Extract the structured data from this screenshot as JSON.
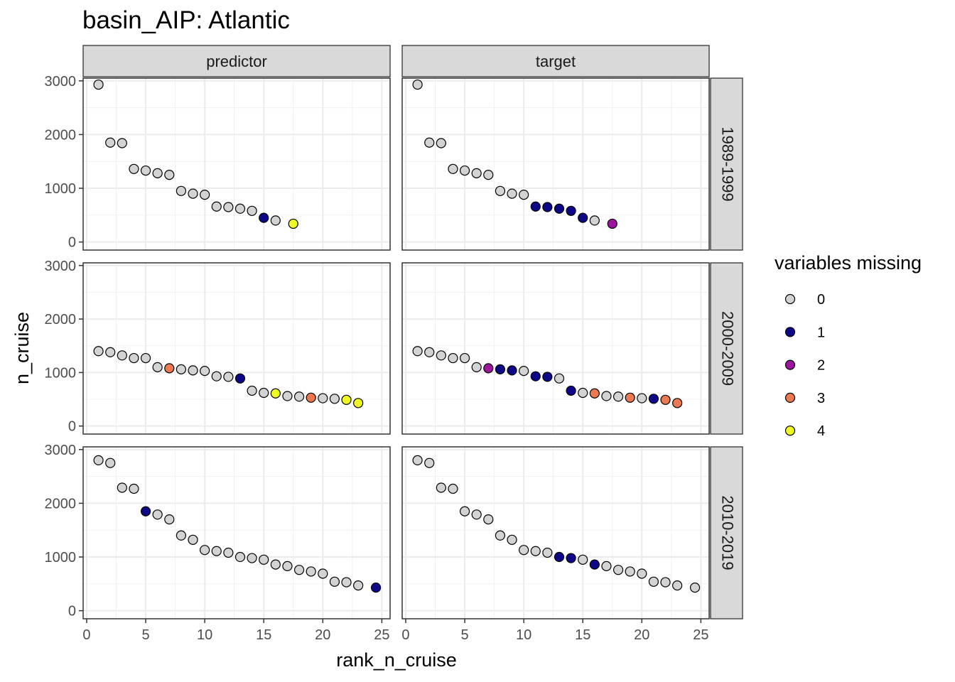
{
  "chart_data": {
    "type": "scatter",
    "title": "basin_AIP: Atlantic",
    "xlabel": "rank_n_cruise",
    "ylabel": "n_cruise",
    "xlim": [
      -0.3,
      25.7
    ],
    "ylim": [
      -150,
      3050
    ],
    "xticks": [
      0,
      5,
      10,
      15,
      20,
      25
    ],
    "yticks": [
      0,
      1000,
      2000,
      3000
    ],
    "grid": true,
    "column_facets": [
      "predictor",
      "target"
    ],
    "row_facets": [
      "1989-1999",
      "2000-2009",
      "2010-2019"
    ],
    "legend": {
      "title": "variables missing",
      "position": "right",
      "entries": [
        {
          "label": "0",
          "color": "#d3d3d3"
        },
        {
          "label": "1",
          "color": "#0d0887"
        },
        {
          "label": "2",
          "color": "#9c179e"
        },
        {
          "label": "3",
          "color": "#ed7953"
        },
        {
          "label": "4",
          "color": "#f0f921"
        }
      ]
    },
    "panels": [
      {
        "row": "1989-1999",
        "col": "predictor",
        "points": [
          [
            1,
            2930,
            0
          ],
          [
            2,
            1850,
            0
          ],
          [
            3,
            1840,
            0
          ],
          [
            4,
            1360,
            0
          ],
          [
            5,
            1330,
            0
          ],
          [
            6,
            1280,
            0
          ],
          [
            7,
            1250,
            0
          ],
          [
            8,
            950,
            0
          ],
          [
            9,
            900,
            0
          ],
          [
            10,
            880,
            0
          ],
          [
            11,
            660,
            0
          ],
          [
            12,
            650,
            0
          ],
          [
            13,
            620,
            0
          ],
          [
            14,
            580,
            0
          ],
          [
            15,
            450,
            1
          ],
          [
            16,
            400,
            0
          ],
          [
            17.5,
            340,
            4
          ]
        ]
      },
      {
        "row": "1989-1999",
        "col": "target",
        "points": [
          [
            1,
            2930,
            0
          ],
          [
            2,
            1850,
            0
          ],
          [
            3,
            1840,
            0
          ],
          [
            4,
            1360,
            0
          ],
          [
            5,
            1330,
            0
          ],
          [
            6,
            1280,
            0
          ],
          [
            7,
            1250,
            0
          ],
          [
            8,
            950,
            0
          ],
          [
            9,
            900,
            0
          ],
          [
            10,
            880,
            0
          ],
          [
            11,
            660,
            1
          ],
          [
            12,
            650,
            1
          ],
          [
            13,
            620,
            1
          ],
          [
            14,
            580,
            1
          ],
          [
            15,
            450,
            1
          ],
          [
            16,
            400,
            0
          ],
          [
            17.5,
            340,
            2
          ]
        ]
      },
      {
        "row": "2000-2009",
        "col": "predictor",
        "points": [
          [
            1,
            1400,
            0
          ],
          [
            2,
            1380,
            0
          ],
          [
            3,
            1320,
            0
          ],
          [
            4,
            1270,
            0
          ],
          [
            5,
            1270,
            0
          ],
          [
            6,
            1100,
            0
          ],
          [
            7,
            1080,
            3
          ],
          [
            8,
            1060,
            0
          ],
          [
            9,
            1040,
            0
          ],
          [
            10,
            1030,
            0
          ],
          [
            11,
            930,
            0
          ],
          [
            12,
            920,
            0
          ],
          [
            13,
            890,
            1
          ],
          [
            14,
            660,
            0
          ],
          [
            15,
            620,
            0
          ],
          [
            16,
            610,
            4
          ],
          [
            17,
            560,
            0
          ],
          [
            18,
            550,
            0
          ],
          [
            19,
            530,
            3
          ],
          [
            20,
            520,
            0
          ],
          [
            21,
            510,
            0
          ],
          [
            22,
            490,
            4
          ],
          [
            23,
            430,
            4
          ]
        ]
      },
      {
        "row": "2000-2009",
        "col": "target",
        "points": [
          [
            1,
            1400,
            0
          ],
          [
            2,
            1380,
            0
          ],
          [
            3,
            1320,
            0
          ],
          [
            4,
            1270,
            0
          ],
          [
            5,
            1270,
            0
          ],
          [
            6,
            1100,
            0
          ],
          [
            7,
            1080,
            2
          ],
          [
            8,
            1060,
            1
          ],
          [
            9,
            1040,
            1
          ],
          [
            10,
            1030,
            0
          ],
          [
            11,
            930,
            1
          ],
          [
            12,
            920,
            1
          ],
          [
            13,
            890,
            0
          ],
          [
            14,
            660,
            1
          ],
          [
            15,
            620,
            0
          ],
          [
            16,
            610,
            3
          ],
          [
            17,
            560,
            0
          ],
          [
            18,
            550,
            0
          ],
          [
            19,
            530,
            3
          ],
          [
            20,
            520,
            0
          ],
          [
            21,
            510,
            1
          ],
          [
            22,
            490,
            3
          ],
          [
            23,
            430,
            3
          ]
        ]
      },
      {
        "row": "2010-2019",
        "col": "predictor",
        "points": [
          [
            1,
            2800,
            0
          ],
          [
            2,
            2750,
            0
          ],
          [
            3,
            2290,
            0
          ],
          [
            4,
            2270,
            0
          ],
          [
            5,
            1850,
            1
          ],
          [
            6,
            1790,
            0
          ],
          [
            7,
            1700,
            0
          ],
          [
            8,
            1400,
            0
          ],
          [
            9,
            1320,
            0
          ],
          [
            10,
            1130,
            0
          ],
          [
            11,
            1110,
            0
          ],
          [
            12,
            1080,
            0
          ],
          [
            13,
            1000,
            0
          ],
          [
            14,
            980,
            0
          ],
          [
            15,
            950,
            0
          ],
          [
            16,
            860,
            0
          ],
          [
            17,
            830,
            0
          ],
          [
            18,
            760,
            0
          ],
          [
            19,
            730,
            0
          ],
          [
            20,
            690,
            0
          ],
          [
            21,
            540,
            0
          ],
          [
            22,
            530,
            0
          ],
          [
            23,
            470,
            0
          ],
          [
            24.5,
            430,
            1
          ]
        ]
      },
      {
        "row": "2010-2019",
        "col": "target",
        "points": [
          [
            1,
            2800,
            0
          ],
          [
            2,
            2750,
            0
          ],
          [
            3,
            2290,
            0
          ],
          [
            4,
            2270,
            0
          ],
          [
            5,
            1850,
            0
          ],
          [
            6,
            1790,
            0
          ],
          [
            7,
            1700,
            0
          ],
          [
            8,
            1400,
            0
          ],
          [
            9,
            1320,
            0
          ],
          [
            10,
            1130,
            0
          ],
          [
            11,
            1110,
            0
          ],
          [
            12,
            1080,
            0
          ],
          [
            13,
            1000,
            1
          ],
          [
            14,
            980,
            1
          ],
          [
            15,
            950,
            0
          ],
          [
            16,
            860,
            1
          ],
          [
            17,
            830,
            0
          ],
          [
            18,
            760,
            0
          ],
          [
            19,
            730,
            0
          ],
          [
            20,
            690,
            0
          ],
          [
            21,
            540,
            0
          ],
          [
            22,
            530,
            0
          ],
          [
            23,
            470,
            0
          ],
          [
            24.5,
            430,
            0
          ]
        ]
      }
    ]
  }
}
